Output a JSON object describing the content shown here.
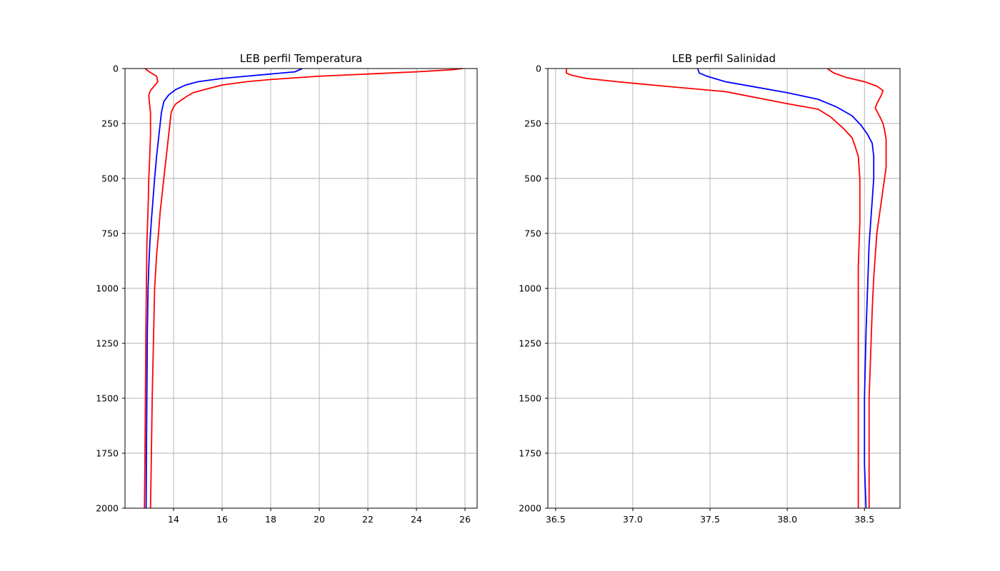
{
  "chart_data": [
    {
      "type": "line",
      "title": "LEB perfil Temperatura",
      "xlabel": "",
      "ylabel": "",
      "xlim": [
        12.0,
        26.5
      ],
      "ylim": [
        2000,
        0
      ],
      "y_inverted": true,
      "grid": true,
      "xticks": [
        14,
        16,
        18,
        20,
        22,
        24,
        26
      ],
      "xtick_labels": [
        "14",
        "16",
        "18",
        "20",
        "22",
        "24",
        "26"
      ],
      "yticks": [
        0,
        250,
        500,
        750,
        1000,
        1250,
        1500,
        1750,
        2000
      ],
      "ytick_labels": [
        "0",
        "250",
        "500",
        "750",
        "1000",
        "1250",
        "1500",
        "1750",
        "2000"
      ],
      "series": [
        {
          "color": "#ff0000",
          "points": [
            [
              12.82,
              0
            ],
            [
              13.0,
              15
            ],
            [
              13.3,
              35
            ],
            [
              13.35,
              60
            ],
            [
              13.2,
              80
            ],
            [
              13.05,
              100
            ],
            [
              12.98,
              120
            ],
            [
              13.0,
              150
            ],
            [
              13.05,
              200
            ],
            [
              13.05,
              300
            ],
            [
              13.02,
              400
            ],
            [
              12.98,
              500
            ],
            [
              12.96,
              600
            ],
            [
              12.93,
              700
            ],
            [
              12.9,
              800
            ],
            [
              12.88,
              1000
            ],
            [
              12.86,
              1200
            ],
            [
              12.84,
              1500
            ],
            [
              12.82,
              1800
            ],
            [
              12.8,
              2000
            ]
          ]
        },
        {
          "color": "#0000ff",
          "points": [
            [
              19.3,
              0
            ],
            [
              19.0,
              15
            ],
            [
              18.0,
              25
            ],
            [
              17.0,
              35
            ],
            [
              16.0,
              45
            ],
            [
              15.0,
              60
            ],
            [
              14.5,
              75
            ],
            [
              14.1,
              95
            ],
            [
              13.8,
              120
            ],
            [
              13.6,
              150
            ],
            [
              13.5,
              200
            ],
            [
              13.45,
              250
            ],
            [
              13.4,
              300
            ],
            [
              13.3,
              400
            ],
            [
              13.22,
              500
            ],
            [
              13.15,
              600
            ],
            [
              13.08,
              700
            ],
            [
              13.02,
              800
            ],
            [
              12.98,
              900
            ],
            [
              12.95,
              1000
            ],
            [
              12.92,
              1200
            ],
            [
              12.9,
              1500
            ],
            [
              12.88,
              1800
            ],
            [
              12.87,
              2000
            ]
          ]
        },
        {
          "color": "#ff0000",
          "points": [
            [
              25.9,
              0
            ],
            [
              25.5,
              5
            ],
            [
              24.0,
              15
            ],
            [
              22.0,
              25
            ],
            [
              20.0,
              35
            ],
            [
              18.0,
              50
            ],
            [
              17.0,
              60
            ],
            [
              16.0,
              75
            ],
            [
              15.3,
              95
            ],
            [
              14.8,
              110
            ],
            [
              14.5,
              130
            ],
            [
              14.3,
              145
            ],
            [
              14.1,
              160
            ],
            [
              14.0,
              175
            ],
            [
              13.9,
              200
            ],
            [
              13.85,
              250
            ],
            [
              13.8,
              300
            ],
            [
              13.75,
              350
            ],
            [
              13.7,
              400
            ],
            [
              13.6,
              500
            ],
            [
              13.5,
              600
            ],
            [
              13.45,
              650
            ],
            [
              13.38,
              750
            ],
            [
              13.3,
              850
            ],
            [
              13.22,
              1000
            ],
            [
              13.18,
              1200
            ],
            [
              13.12,
              1500
            ],
            [
              13.08,
              1800
            ],
            [
              13.05,
              2000
            ]
          ]
        }
      ]
    },
    {
      "type": "line",
      "title": "LEB perfil Salinidad",
      "xlabel": "",
      "ylabel": "",
      "xlim": [
        36.45,
        38.73
      ],
      "ylim": [
        2000,
        0
      ],
      "y_inverted": true,
      "grid": true,
      "xticks": [
        36.5,
        37.0,
        37.5,
        38.0,
        38.5
      ],
      "xtick_labels": [
        "36.5",
        "37.0",
        "37.5",
        "38.0",
        "38.5"
      ],
      "yticks": [
        0,
        250,
        500,
        750,
        1000,
        1250,
        1500,
        1750,
        2000
      ],
      "ytick_labels": [
        "0",
        "250",
        "500",
        "750",
        "1000",
        "1250",
        "1500",
        "1750",
        "2000"
      ],
      "series": [
        {
          "color": "#ff0000",
          "points": [
            [
              36.57,
              0
            ],
            [
              36.57,
              20
            ],
            [
              36.6,
              30
            ],
            [
              36.7,
              45
            ],
            [
              36.9,
              60
            ],
            [
              37.2,
              80
            ],
            [
              37.6,
              105
            ],
            [
              38.0,
              160
            ],
            [
              38.2,
              185
            ],
            [
              38.28,
              220
            ],
            [
              38.36,
              270
            ],
            [
              38.42,
              315
            ],
            [
              38.44,
              355
            ],
            [
              38.46,
              400
            ],
            [
              38.47,
              500
            ],
            [
              38.47,
              700
            ],
            [
              38.46,
              900
            ],
            [
              38.46,
              1200
            ],
            [
              38.46,
              1500
            ],
            [
              38.46,
              1800
            ],
            [
              38.46,
              2000
            ]
          ]
        },
        {
          "color": "#0000ff",
          "points": [
            [
              37.42,
              0
            ],
            [
              37.43,
              20
            ],
            [
              37.48,
              35
            ],
            [
              37.6,
              60
            ],
            [
              37.8,
              85
            ],
            [
              38.0,
              110
            ],
            [
              38.2,
              140
            ],
            [
              38.32,
              175
            ],
            [
              38.42,
              215
            ],
            [
              38.48,
              260
            ],
            [
              38.52,
              300
            ],
            [
              38.55,
              340
            ],
            [
              38.56,
              400
            ],
            [
              38.56,
              500
            ],
            [
              38.55,
              600
            ],
            [
              38.54,
              700
            ],
            [
              38.53,
              800
            ],
            [
              38.52,
              1000
            ],
            [
              38.51,
              1200
            ],
            [
              38.5,
              1500
            ],
            [
              38.5,
              1800
            ],
            [
              38.51,
              2000
            ]
          ]
        },
        {
          "color": "#ff0000",
          "points": [
            [
              38.26,
              0
            ],
            [
              38.3,
              20
            ],
            [
              38.38,
              40
            ],
            [
              38.5,
              60
            ],
            [
              38.58,
              80
            ],
            [
              38.62,
              100
            ],
            [
              38.61,
              120
            ],
            [
              38.58,
              160
            ],
            [
              38.57,
              180
            ],
            [
              38.6,
              220
            ],
            [
              38.62,
              250
            ],
            [
              38.63,
              280
            ],
            [
              38.64,
              320
            ],
            [
              38.64,
              380
            ],
            [
              38.64,
              450
            ],
            [
              38.62,
              550
            ],
            [
              38.6,
              650
            ],
            [
              38.58,
              750
            ],
            [
              38.57,
              850
            ],
            [
              38.56,
              950
            ],
            [
              38.55,
              1100
            ],
            [
              38.54,
              1300
            ],
            [
              38.53,
              1500
            ],
            [
              38.53,
              1800
            ],
            [
              38.53,
              2000
            ]
          ]
        }
      ]
    }
  ]
}
